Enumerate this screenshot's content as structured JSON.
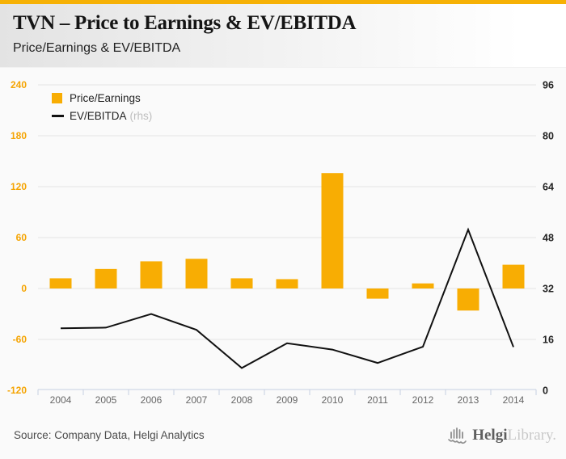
{
  "header": {
    "title": "TVN – Price to Earnings & EV/EBITDA",
    "subtitle": "Price/Earnings & EV/EBITDA",
    "accent_color": "#F6B105"
  },
  "legend": {
    "items": [
      {
        "label": "Price/Earnings",
        "swatch": "square",
        "color": "#F8AD03"
      },
      {
        "label": "EV/EBITDA",
        "suffix": "(rhs)",
        "swatch": "line",
        "color": "#111111"
      }
    ]
  },
  "chart_data": {
    "type": "bar",
    "subtype": "bar+line combo, dual axis",
    "title": "TVN – Price to Earnings & EV/EBITDA",
    "categories": [
      "2004",
      "2005",
      "2006",
      "2007",
      "2008",
      "2009",
      "2010",
      "2011",
      "2012",
      "2013",
      "2014"
    ],
    "series": [
      {
        "name": "Price/Earnings",
        "type": "bar",
        "axis": "left",
        "color": "#F8AD03",
        "values": [
          12,
          23,
          32,
          35,
          12,
          11,
          136,
          -12,
          6,
          -26,
          28
        ]
      },
      {
        "name": "EV/EBITDA (rhs)",
        "type": "line",
        "axis": "right",
        "color": "#111111",
        "values": [
          19.5,
          19.7,
          24,
          19,
          7,
          14.8,
          12.8,
          8.6,
          13.7,
          50.5,
          13.6
        ]
      }
    ],
    "left_axis": {
      "ticks": [
        240,
        180,
        120,
        60,
        0,
        -60,
        -120
      ],
      "min": -120,
      "max": 240,
      "color": "#F5A402"
    },
    "right_axis": {
      "ticks": [
        96,
        80,
        64,
        48,
        32,
        16,
        0
      ],
      "min": 0,
      "max": 96,
      "color": "#222222"
    },
    "x_label_color": "#666666",
    "grid": true,
    "grid_color": "#e4e4e4",
    "axis_line_color": "#c7d0e2",
    "legend_position": "top-left"
  },
  "footer": {
    "source": "Source: Company Data, Helgi Analytics",
    "logo": {
      "brand": "Helgi",
      "suffix": "Library."
    }
  }
}
